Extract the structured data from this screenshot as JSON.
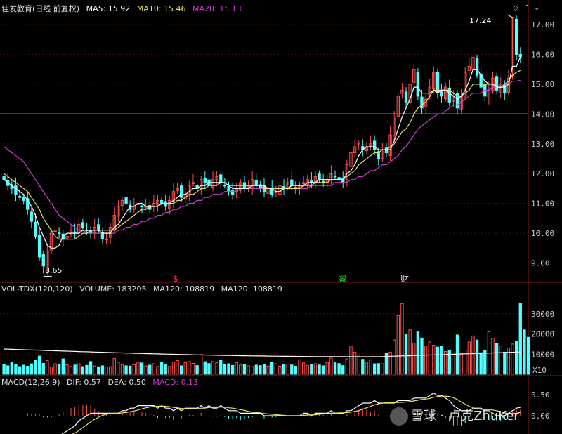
{
  "header": {
    "stock_name": "佳发教育(日线 前复权)",
    "ma5_label": "MA5: 15.92",
    "ma10_label": "MA10: 15.46",
    "ma20_label": "MA20: 15.13"
  },
  "volume_header": {
    "indicator": "VOL-TDX(120,120)",
    "volume_label": "VOLUME: 183205",
    "ma120_a": "MA120: 108819",
    "ma120_b": "MA120: 108819",
    "unit": "X10"
  },
  "macd_header": {
    "indicator": "MACD(12,26,9)",
    "dif_label": "DIF: 0.57",
    "dea_label": "DEA: 0.50",
    "macd_label": "MACD: 0.13"
  },
  "annotations": {
    "high": "17.24",
    "low": "8.65",
    "marker_s": "$",
    "marker_jian": "减",
    "marker_cai": "财"
  },
  "watermark": "雪球 · 卢克ZhuKer",
  "colors": {
    "up": "#ff5050",
    "down": "#50ffff",
    "ma5": "#ffffff",
    "ma10": "#e8e060",
    "ma20": "#d040d0",
    "hline": "#ffffff"
  },
  "chart_data": [
    {
      "type": "candlestick",
      "ylim": [
        8.4,
        17.4
      ],
      "yticks": [
        "9.00",
        "10.00",
        "11.00",
        "12.00",
        "13.00",
        "14.00",
        "15.00",
        "16.00",
        "17.00"
      ],
      "horizontal_line": 14.0,
      "closes": [
        11.8,
        11.6,
        11.5,
        11.3,
        11.2,
        11.1,
        10.8,
        10.4,
        9.9,
        9.2,
        8.9,
        9.4,
        10.0,
        10.1,
        10.0,
        9.8,
        9.9,
        10.1,
        10.0,
        10.3,
        10.2,
        10.1,
        10.0,
        10.2,
        10.1,
        9.8,
        9.8,
        10.2,
        10.6,
        10.9,
        11.1,
        11.0,
        10.8,
        10.9,
        11.0,
        10.9,
        10.9,
        10.8,
        11.0,
        11.1,
        11.0,
        10.9,
        11.1,
        11.4,
        11.5,
        11.2,
        11.3,
        11.6,
        11.7,
        11.5,
        11.8,
        11.7,
        11.6,
        11.8,
        11.9,
        11.7,
        11.6,
        11.4,
        11.3,
        11.5,
        11.7,
        11.5,
        11.6,
        11.8,
        11.6,
        11.5,
        11.4,
        11.5,
        11.3,
        11.4,
        11.6,
        11.5,
        11.7,
        11.6,
        11.5,
        11.6,
        11.7,
        11.8,
        11.7,
        11.9,
        11.8,
        11.7,
        11.8,
        12.0,
        11.9,
        11.8,
        11.7,
        12.3,
        12.7,
        12.9,
        13.0,
        12.8,
        12.9,
        13.0,
        12.8,
        12.5,
        12.8,
        12.7,
        13.3,
        13.9,
        14.6,
        14.8,
        14.4,
        15.0,
        15.5,
        14.6,
        14.2,
        14.5,
        14.9,
        15.4,
        14.7,
        14.6,
        14.9,
        14.4,
        14.6,
        14.2,
        14.6,
        15.4,
        15.6,
        15.9,
        15.3,
        14.9,
        14.6,
        14.8,
        15.2,
        14.8,
        15.0,
        14.7,
        15.2,
        17.24,
        16.0,
        15.92
      ],
      "ma5": [
        11.8,
        11.7,
        11.6,
        11.5,
        11.4,
        11.3,
        11.1,
        10.9,
        10.6,
        10.2,
        9.9,
        9.6,
        9.5,
        9.5,
        9.6,
        9.9,
        10.0,
        10.0,
        10.0,
        10.0,
        10.1,
        10.1,
        10.1,
        10.1,
        10.1,
        10.0,
        10.0,
        10.0,
        10.2,
        10.3,
        10.5,
        10.7,
        10.9,
        10.9,
        11.0,
        11.0,
        10.9,
        10.9,
        10.9,
        10.9,
        11.0,
        11.0,
        11.0,
        11.1,
        11.2,
        11.3,
        11.3,
        11.4,
        11.5,
        11.5,
        11.6,
        11.6,
        11.7,
        11.7,
        11.7,
        11.7,
        11.7,
        11.6,
        11.5,
        11.5,
        11.5,
        11.5,
        11.5,
        11.6,
        11.6,
        11.6,
        11.6,
        11.5,
        11.5,
        11.4,
        11.4,
        11.5,
        11.5,
        11.6,
        11.6,
        11.6,
        11.6,
        11.7,
        11.7,
        11.7,
        11.8,
        11.8,
        11.8,
        11.8,
        11.8,
        11.8,
        11.8,
        12.0,
        12.1,
        12.3,
        12.6,
        12.8,
        12.9,
        12.9,
        12.9,
        12.8,
        12.8,
        12.8,
        12.8,
        13.1,
        13.5,
        13.9,
        14.2,
        14.5,
        14.9,
        14.9,
        14.7,
        14.7,
        14.7,
        14.8,
        14.7,
        14.8,
        14.8,
        14.7,
        14.6,
        14.5,
        14.6,
        14.8,
        15.1,
        15.5,
        15.5,
        15.3,
        15.1,
        15.0,
        15.0,
        14.9,
        14.9,
        14.9,
        15.0,
        15.6,
        15.6,
        15.92
      ],
      "ma10": [
        12.0,
        11.9,
        11.8,
        11.7,
        11.6,
        11.5,
        11.4,
        11.2,
        11.0,
        10.8,
        10.5,
        10.3,
        10.1,
        9.9,
        9.8,
        9.8,
        9.8,
        9.8,
        9.8,
        9.9,
        10.0,
        10.0,
        10.1,
        10.1,
        10.1,
        10.1,
        10.1,
        10.1,
        10.1,
        10.2,
        10.3,
        10.4,
        10.5,
        10.6,
        10.7,
        10.8,
        10.8,
        10.9,
        10.9,
        10.9,
        11.0,
        11.0,
        11.0,
        11.0,
        11.1,
        11.1,
        11.2,
        11.3,
        11.3,
        11.4,
        11.5,
        11.5,
        11.6,
        11.6,
        11.6,
        11.7,
        11.7,
        11.6,
        11.6,
        11.6,
        11.6,
        11.6,
        11.6,
        11.6,
        11.6,
        11.6,
        11.5,
        11.5,
        11.5,
        11.5,
        11.5,
        11.5,
        11.5,
        11.5,
        11.5,
        11.5,
        11.6,
        11.6,
        11.6,
        11.7,
        11.7,
        11.7,
        11.7,
        11.8,
        11.8,
        11.8,
        11.8,
        11.9,
        12.0,
        12.1,
        12.3,
        12.4,
        12.5,
        12.6,
        12.7,
        12.7,
        12.8,
        12.8,
        12.9,
        13.0,
        13.2,
        13.4,
        13.5,
        13.7,
        14.0,
        14.2,
        14.3,
        14.4,
        14.6,
        14.8,
        14.8,
        14.8,
        14.8,
        14.8,
        14.7,
        14.6,
        14.6,
        14.7,
        14.8,
        15.0,
        15.0,
        15.0,
        15.0,
        15.0,
        15.0,
        14.9,
        14.9,
        15.0,
        15.1,
        15.3,
        15.4,
        15.46
      ],
      "ma20": [
        12.9,
        12.8,
        12.7,
        12.6,
        12.5,
        12.4,
        12.2,
        12.0,
        11.8,
        11.6,
        11.4,
        11.2,
        11.0,
        10.8,
        10.6,
        10.5,
        10.4,
        10.3,
        10.2,
        10.1,
        10.1,
        10.0,
        10.0,
        10.0,
        10.0,
        10.0,
        10.0,
        10.0,
        10.0,
        10.1,
        10.1,
        10.2,
        10.2,
        10.3,
        10.3,
        10.4,
        10.4,
        10.5,
        10.5,
        10.6,
        10.6,
        10.7,
        10.7,
        10.8,
        10.8,
        10.9,
        10.9,
        11.0,
        11.0,
        11.1,
        11.1,
        11.2,
        11.2,
        11.3,
        11.3,
        11.3,
        11.4,
        11.4,
        11.4,
        11.4,
        11.5,
        11.5,
        11.5,
        11.5,
        11.5,
        11.5,
        11.5,
        11.5,
        11.5,
        11.5,
        11.5,
        11.5,
        11.5,
        11.5,
        11.5,
        11.5,
        11.5,
        11.5,
        11.6,
        11.6,
        11.6,
        11.6,
        11.6,
        11.6,
        11.7,
        11.7,
        11.7,
        11.7,
        11.8,
        11.8,
        11.9,
        11.9,
        12.0,
        12.1,
        12.1,
        12.2,
        12.3,
        12.3,
        12.4,
        12.5,
        12.6,
        12.8,
        12.9,
        13.1,
        13.3,
        13.5,
        13.6,
        13.7,
        13.8,
        13.9,
        14.0,
        14.0,
        14.1,
        14.2,
        14.3,
        14.3,
        14.4,
        14.5,
        14.6,
        14.7,
        14.7,
        14.7,
        14.8,
        14.8,
        14.9,
        14.9,
        14.9,
        15.0,
        15.0,
        15.1,
        15.1,
        15.13
      ]
    },
    {
      "type": "bar",
      "ylim": [
        0,
        40000
      ],
      "yticks": [
        "10000",
        "20000",
        "30000"
      ],
      "ma120_level": 10881.9,
      "volumes": [
        5000,
        4200,
        6000,
        4800,
        3800,
        4500,
        4000,
        5200,
        6800,
        9000,
        5400,
        6800,
        3600,
        5200,
        4800,
        7600,
        4700,
        3900,
        4600,
        5200,
        3800,
        4400,
        6300,
        4100,
        3700,
        4200,
        3600,
        3800,
        7800,
        5900,
        4800,
        4200,
        4100,
        4700,
        5900,
        5600,
        4100,
        4500,
        5200,
        3900,
        5800,
        4800,
        3900,
        6100,
        6800,
        4200,
        5800,
        6300,
        5400,
        4300,
        9700,
        6200,
        5300,
        6300,
        5700,
        7000,
        4800,
        5200,
        4400,
        5800,
        4600,
        4900,
        4200,
        3800,
        4500,
        4300,
        4800,
        4100,
        6000,
        5200,
        4000,
        4700,
        5000,
        4600,
        4000,
        7200,
        5600,
        4400,
        5000,
        5200,
        4600,
        4200,
        5900,
        8000,
        5700,
        5300,
        4300,
        7600,
        14000,
        11000,
        9500,
        7400,
        5600,
        7200,
        5200,
        5300,
        5200,
        10500,
        11000,
        17000,
        29000,
        35000,
        20000,
        22000,
        15500,
        21000,
        18000,
        14000,
        16000,
        14400,
        13500,
        14000,
        11300,
        11800,
        9800,
        19500,
        10200,
        12000,
        16000,
        19000,
        17000,
        10700,
        12000,
        21000,
        17800,
        15400,
        14000,
        11000,
        13000,
        15000,
        16500,
        35000,
        22000,
        18320
      ]
    },
    {
      "type": "line",
      "ylim": [
        -0.4,
        0.7
      ],
      "yticks": [
        "0.50",
        "0.00"
      ],
      "dif_last": 0.57,
      "dea_last": 0.5,
      "macd_last": 0.13
    }
  ]
}
